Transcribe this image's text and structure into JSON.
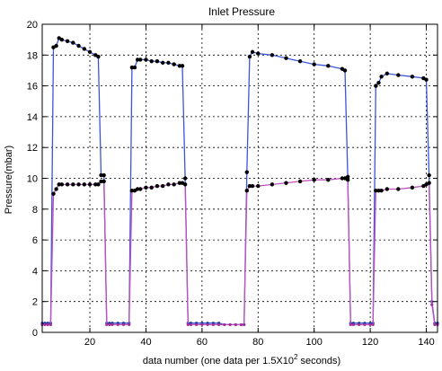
{
  "chart_data": {
    "type": "line",
    "title": "Inlet Pressure",
    "xlabel": "data number (one data per 1.5X10",
    "xlabel_sup": "2",
    "xlabel_suffix": " seconds)",
    "ylabel": "Pressure(mbar)",
    "xlim": [
      3,
      144
    ],
    "ylim": [
      0,
      20
    ],
    "xticks": [
      20,
      40,
      60,
      80,
      100,
      120,
      140
    ],
    "yticks": [
      0,
      2,
      4,
      6,
      8,
      10,
      12,
      14,
      16,
      18,
      20
    ],
    "grid": true,
    "legend": "none",
    "series": [
      {
        "color": "#3a56d8",
        "marker_color": "#1a3a9a",
        "thick_marker_color": "#000000",
        "x": [
          3,
          4,
          5,
          6,
          7,
          8,
          9,
          10,
          12,
          14,
          16,
          18,
          20,
          22,
          23,
          24,
          25,
          26,
          27,
          28,
          30,
          32,
          34,
          35,
          36,
          37,
          38,
          40,
          42,
          44,
          46,
          48,
          50,
          52,
          53,
          54,
          55,
          56,
          58,
          60,
          62,
          64,
          66,
          68,
          70,
          72,
          74,
          75,
          76,
          77,
          78,
          80,
          85,
          90,
          95,
          100,
          105,
          110,
          111,
          112,
          113,
          114,
          116,
          118,
          120,
          121,
          122,
          123,
          124,
          126,
          130,
          135,
          139,
          140,
          141,
          142,
          143,
          144
        ],
        "y": [
          0.6,
          0.6,
          0.6,
          0.6,
          18.5,
          18.6,
          19.1,
          19.0,
          18.9,
          18.8,
          18.6,
          18.4,
          18.2,
          18.0,
          17.9,
          10.2,
          10.2,
          0.6,
          0.6,
          0.6,
          0.6,
          0.6,
          0.6,
          17.2,
          17.2,
          17.7,
          17.7,
          17.7,
          17.6,
          17.6,
          17.5,
          17.5,
          17.4,
          17.3,
          17.3,
          10.0,
          0.6,
          0.6,
          0.6,
          0.6,
          0.6,
          0.6,
          0.6,
          0.5,
          0.5,
          0.5,
          0.5,
          0.5,
          10.4,
          17.9,
          18.2,
          18.1,
          18.0,
          17.8,
          17.6,
          17.4,
          17.3,
          17.1,
          17.0,
          10.1,
          0.6,
          0.6,
          0.6,
          0.6,
          0.6,
          0.6,
          16.0,
          16.2,
          16.6,
          16.8,
          16.7,
          16.6,
          16.5,
          16.4,
          10.2,
          2.0,
          0.6,
          0.6
        ]
      },
      {
        "color": "#c050c0",
        "marker_color": "#a030a0",
        "thick_marker_color": "#000000",
        "x": [
          3,
          4,
          5,
          6,
          7,
          8,
          9,
          10,
          12,
          14,
          16,
          18,
          20,
          22,
          23,
          24,
          25,
          26,
          27,
          28,
          30,
          32,
          34,
          35,
          36,
          37,
          38,
          40,
          42,
          44,
          46,
          48,
          50,
          52,
          53,
          54,
          55,
          56,
          58,
          60,
          62,
          64,
          66,
          68,
          70,
          72,
          74,
          75,
          76,
          77,
          78,
          80,
          85,
          90,
          95,
          100,
          105,
          110,
          111,
          112,
          113,
          114,
          116,
          118,
          120,
          121,
          122,
          123,
          124,
          126,
          130,
          135,
          139,
          140,
          141,
          142,
          143,
          144
        ],
        "y": [
          0.5,
          0.5,
          0.5,
          0.5,
          9.0,
          9.3,
          9.6,
          9.6,
          9.6,
          9.6,
          9.6,
          9.6,
          9.6,
          9.6,
          9.6,
          9.8,
          9.8,
          0.5,
          0.5,
          0.5,
          0.5,
          0.5,
          0.5,
          9.2,
          9.2,
          9.3,
          9.3,
          9.4,
          9.4,
          9.5,
          9.5,
          9.6,
          9.6,
          9.7,
          9.7,
          9.6,
          0.5,
          0.5,
          0.5,
          0.5,
          0.5,
          0.5,
          0.5,
          0.5,
          0.5,
          0.5,
          0.5,
          0.5,
          9.2,
          9.5,
          9.5,
          9.5,
          9.6,
          9.7,
          9.8,
          9.9,
          9.9,
          10.0,
          10.0,
          9.9,
          0.5,
          0.5,
          0.5,
          0.5,
          0.5,
          0.5,
          9.2,
          9.2,
          9.2,
          9.3,
          9.3,
          9.4,
          9.5,
          9.6,
          9.7,
          1.8,
          0.5,
          0.5
        ]
      }
    ]
  }
}
